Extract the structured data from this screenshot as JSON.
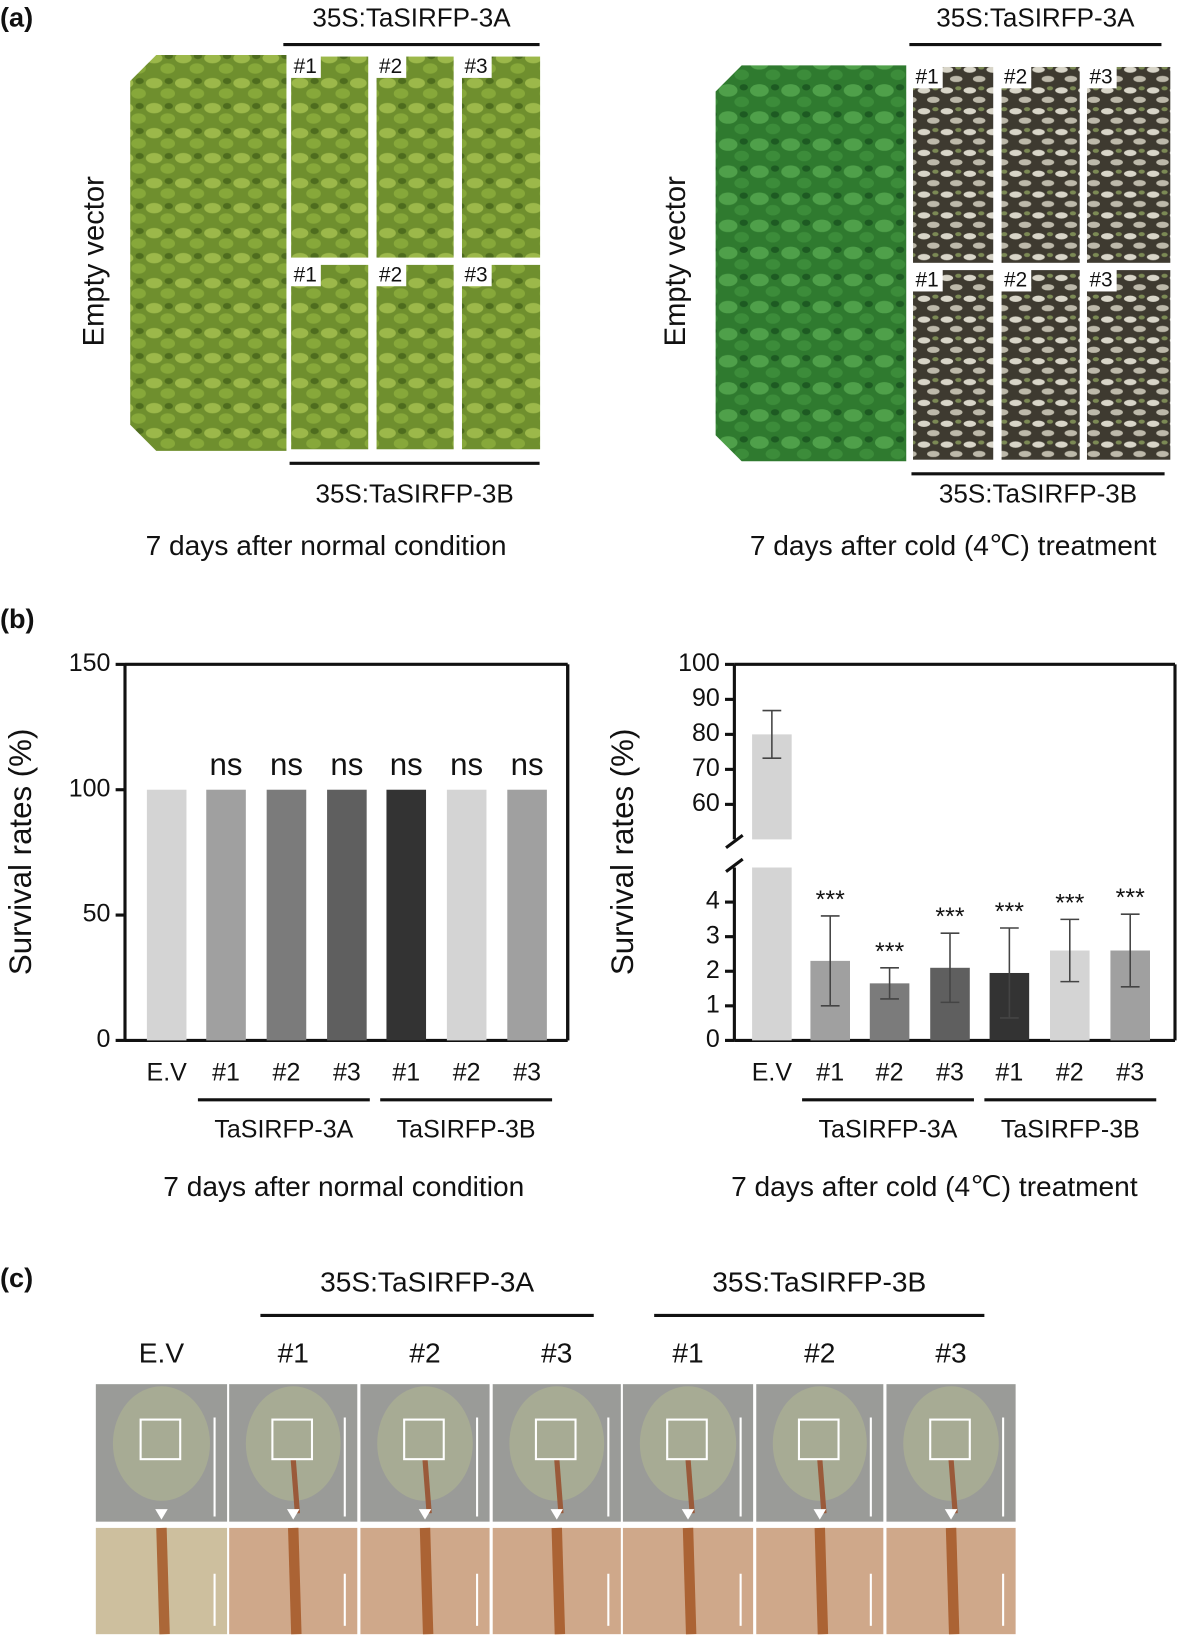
{
  "panel_a": {
    "label": "(a)",
    "left": {
      "top_label": "35S:TaSIRFP-3A",
      "bottom_label": "35S:TaSIRFP-3B",
      "side_label": "Empty vector",
      "top_lines": [
        "#1",
        "#2",
        "#3"
      ],
      "bottom_lines": [
        "#1",
        "#2",
        "#3"
      ],
      "caption": "7 days after normal condition"
    },
    "right": {
      "top_label": "35S:TaSIRFP-3A",
      "bottom_label": "35S:TaSIRFP-3B",
      "side_label": "Empty vector",
      "top_lines": [
        "#1",
        "#2",
        "#3"
      ],
      "bottom_lines": [
        "#1",
        "#2",
        "#3"
      ],
      "caption": "7 days after cold (4℃) treatment"
    }
  },
  "panel_b": {
    "label": "(b)"
  },
  "chart_data": [
    {
      "type": "bar",
      "y_label": "Survival rates (%)",
      "caption": "7 days after normal condition",
      "categories": [
        "E.V",
        "#1",
        "#2",
        "#3",
        "#1",
        "#2",
        "#3"
      ],
      "groups": [
        "TaSIRFP-3A",
        "TaSIRFP-3B"
      ],
      "values": [
        100,
        100,
        100,
        100,
        100,
        100,
        100
      ],
      "annotations": [
        null,
        "ns",
        "ns",
        "ns",
        "ns",
        "ns",
        "ns"
      ],
      "colors": [
        "#d4d4d4",
        "#a0a0a0",
        "#7b7b7b",
        "#5f5f5f",
        "#333333",
        "#d4d4d4",
        "#a0a0a0"
      ],
      "ylim": [
        0,
        150
      ],
      "yticks": [
        0,
        50,
        100,
        150
      ]
    },
    {
      "type": "broken-bar",
      "y_label": "Survival rates (%)",
      "caption": "7 days after cold (4℃) treatment",
      "categories": [
        "E.V",
        "#1",
        "#2",
        "#3",
        "#1",
        "#2",
        "#3"
      ],
      "groups": [
        "TaSIRFP-3A",
        "TaSIRFP-3B"
      ],
      "values": [
        80,
        2.3,
        1.65,
        2.1,
        1.95,
        2.6,
        2.6
      ],
      "errors": [
        6.8,
        1.3,
        0.45,
        1.0,
        1.3,
        0.9,
        1.05
      ],
      "annotations": [
        null,
        "***",
        "***",
        "***",
        "***",
        "***",
        "***"
      ],
      "colors": [
        "#d4d4d4",
        "#a0a0a0",
        "#7b7b7b",
        "#5f5f5f",
        "#333333",
        "#d4d4d4",
        "#a0a0a0"
      ],
      "ylim": [
        0,
        100
      ],
      "axis_break": [
        5,
        50
      ],
      "yticks": [
        0,
        1,
        2,
        3,
        4,
        60,
        70,
        80,
        90,
        100
      ]
    }
  ],
  "panel_c": {
    "label": "(c)",
    "groups": [
      "35S:TaSIRFP-3A",
      "35S:TaSIRFP-3B"
    ],
    "columns": [
      "E.V",
      "#1",
      "#2",
      "#3",
      "#1",
      "#2",
      "#3"
    ]
  }
}
